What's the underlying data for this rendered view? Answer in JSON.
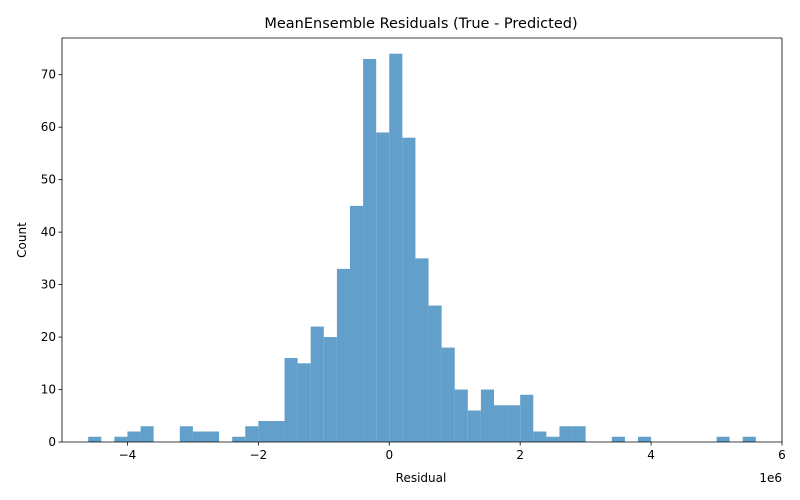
{
  "chart_data": {
    "type": "bar",
    "title": "MeanEnsemble Residuals (True - Predicted)",
    "xlabel": "Residual",
    "ylabel": "Count",
    "x_offset_label": "1e6",
    "x_scale": 1000000,
    "xlim": [
      -5000000,
      6000000
    ],
    "ylim": [
      0,
      77
    ],
    "x_ticks": [
      -4,
      -2,
      0,
      2,
      4,
      6
    ],
    "x_tick_labels": [
      "−4",
      "−2",
      "0",
      "2",
      "4",
      "6"
    ],
    "y_ticks": [
      0,
      10,
      20,
      30,
      40,
      50,
      60,
      70
    ],
    "y_tick_labels": [
      "0",
      "10",
      "20",
      "30",
      "40",
      "50",
      "60",
      "70"
    ],
    "bin_start": -4600000,
    "bin_width": 200000,
    "counts": [
      1,
      0,
      1,
      2,
      3,
      0,
      0,
      3,
      2,
      2,
      0,
      1,
      3,
      4,
      4,
      16,
      15,
      22,
      20,
      33,
      45,
      73,
      59,
      74,
      58,
      35,
      26,
      18,
      10,
      6,
      10,
      7,
      7,
      9,
      2,
      1,
      3,
      3,
      0,
      0,
      1,
      0,
      1,
      0,
      0,
      0,
      0,
      0,
      1,
      0,
      1
    ],
    "bar_color": "#629fca",
    "grid": false,
    "legend": "none"
  }
}
